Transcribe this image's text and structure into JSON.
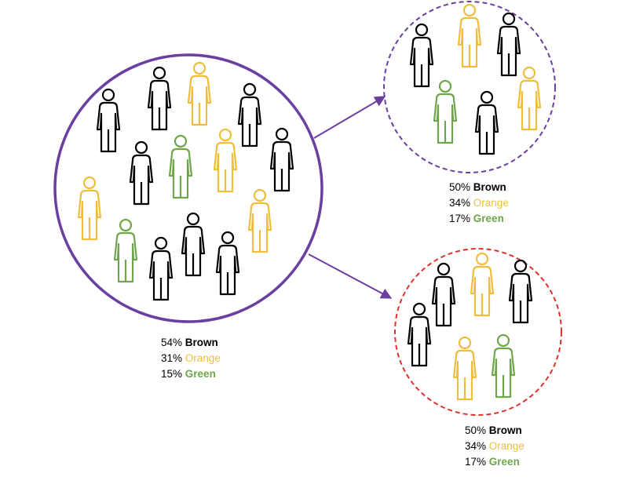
{
  "colors": {
    "brown_person": "#000000",
    "orange_person": "#F0BE3C",
    "green_person": "#6FA64B",
    "population_circle": "#6A3FA0",
    "sample_top_circle": "#6A3FA0",
    "sample_bottom_circle": "#E0312B",
    "arrow": "#6A3FA0"
  },
  "population": {
    "stats": [
      {
        "percent": "54%",
        "name": "Brown",
        "color": "brown"
      },
      {
        "percent": "31%",
        "name": "Orange",
        "color": "orange"
      },
      {
        "percent": "15%",
        "name": "Green",
        "color": "green"
      }
    ]
  },
  "sample_top": {
    "stats": [
      {
        "percent": "50%",
        "name": "Brown",
        "color": "brown"
      },
      {
        "percent": "34%",
        "name": "Orange",
        "color": "orange"
      },
      {
        "percent": "17%",
        "name": "Green",
        "color": "green"
      }
    ]
  },
  "sample_bottom": {
    "stats": [
      {
        "percent": "50%",
        "name": "Brown",
        "color": "brown"
      },
      {
        "percent": "34%",
        "name": "Orange",
        "color": "orange"
      },
      {
        "percent": "17%",
        "name": "Green",
        "color": "green"
      }
    ]
  }
}
